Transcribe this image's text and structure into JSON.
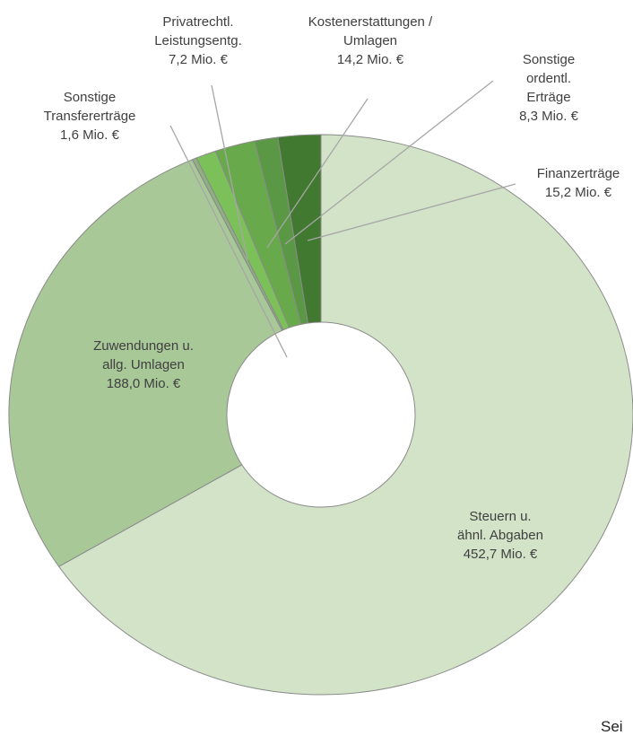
{
  "chart_data": {
    "type": "donut",
    "categories": [
      "Steuern u.\nähnl. Abgaben",
      "Zuwendungen u.\nallg. Umlagen",
      "Sonstige\nTransfererträge",
      "Privatrechtl.\nLeistungsentg.",
      "Kostenerstattungen /\nUmlagen",
      "Sonstige\nordentl. Erträge",
      "Finanzerträge"
    ],
    "values": [
      452.7,
      188.0,
      1.6,
      7.2,
      14.2,
      8.3,
      15.2
    ],
    "value_labels": [
      "452,7 Mio. €",
      "188,0 Mio. €",
      "1,6 Mio. €",
      "7,2 Mio. €",
      "14,2 Mio. €",
      "8,3 Mio. €",
      "15,2 Mio. €"
    ],
    "colors": [
      "#d2e3c8",
      "#a8c898",
      "#8fae82",
      "#7cc05a",
      "#68a94b",
      "#5a9846",
      "#40792f"
    ]
  },
  "footer_text": "Sei"
}
